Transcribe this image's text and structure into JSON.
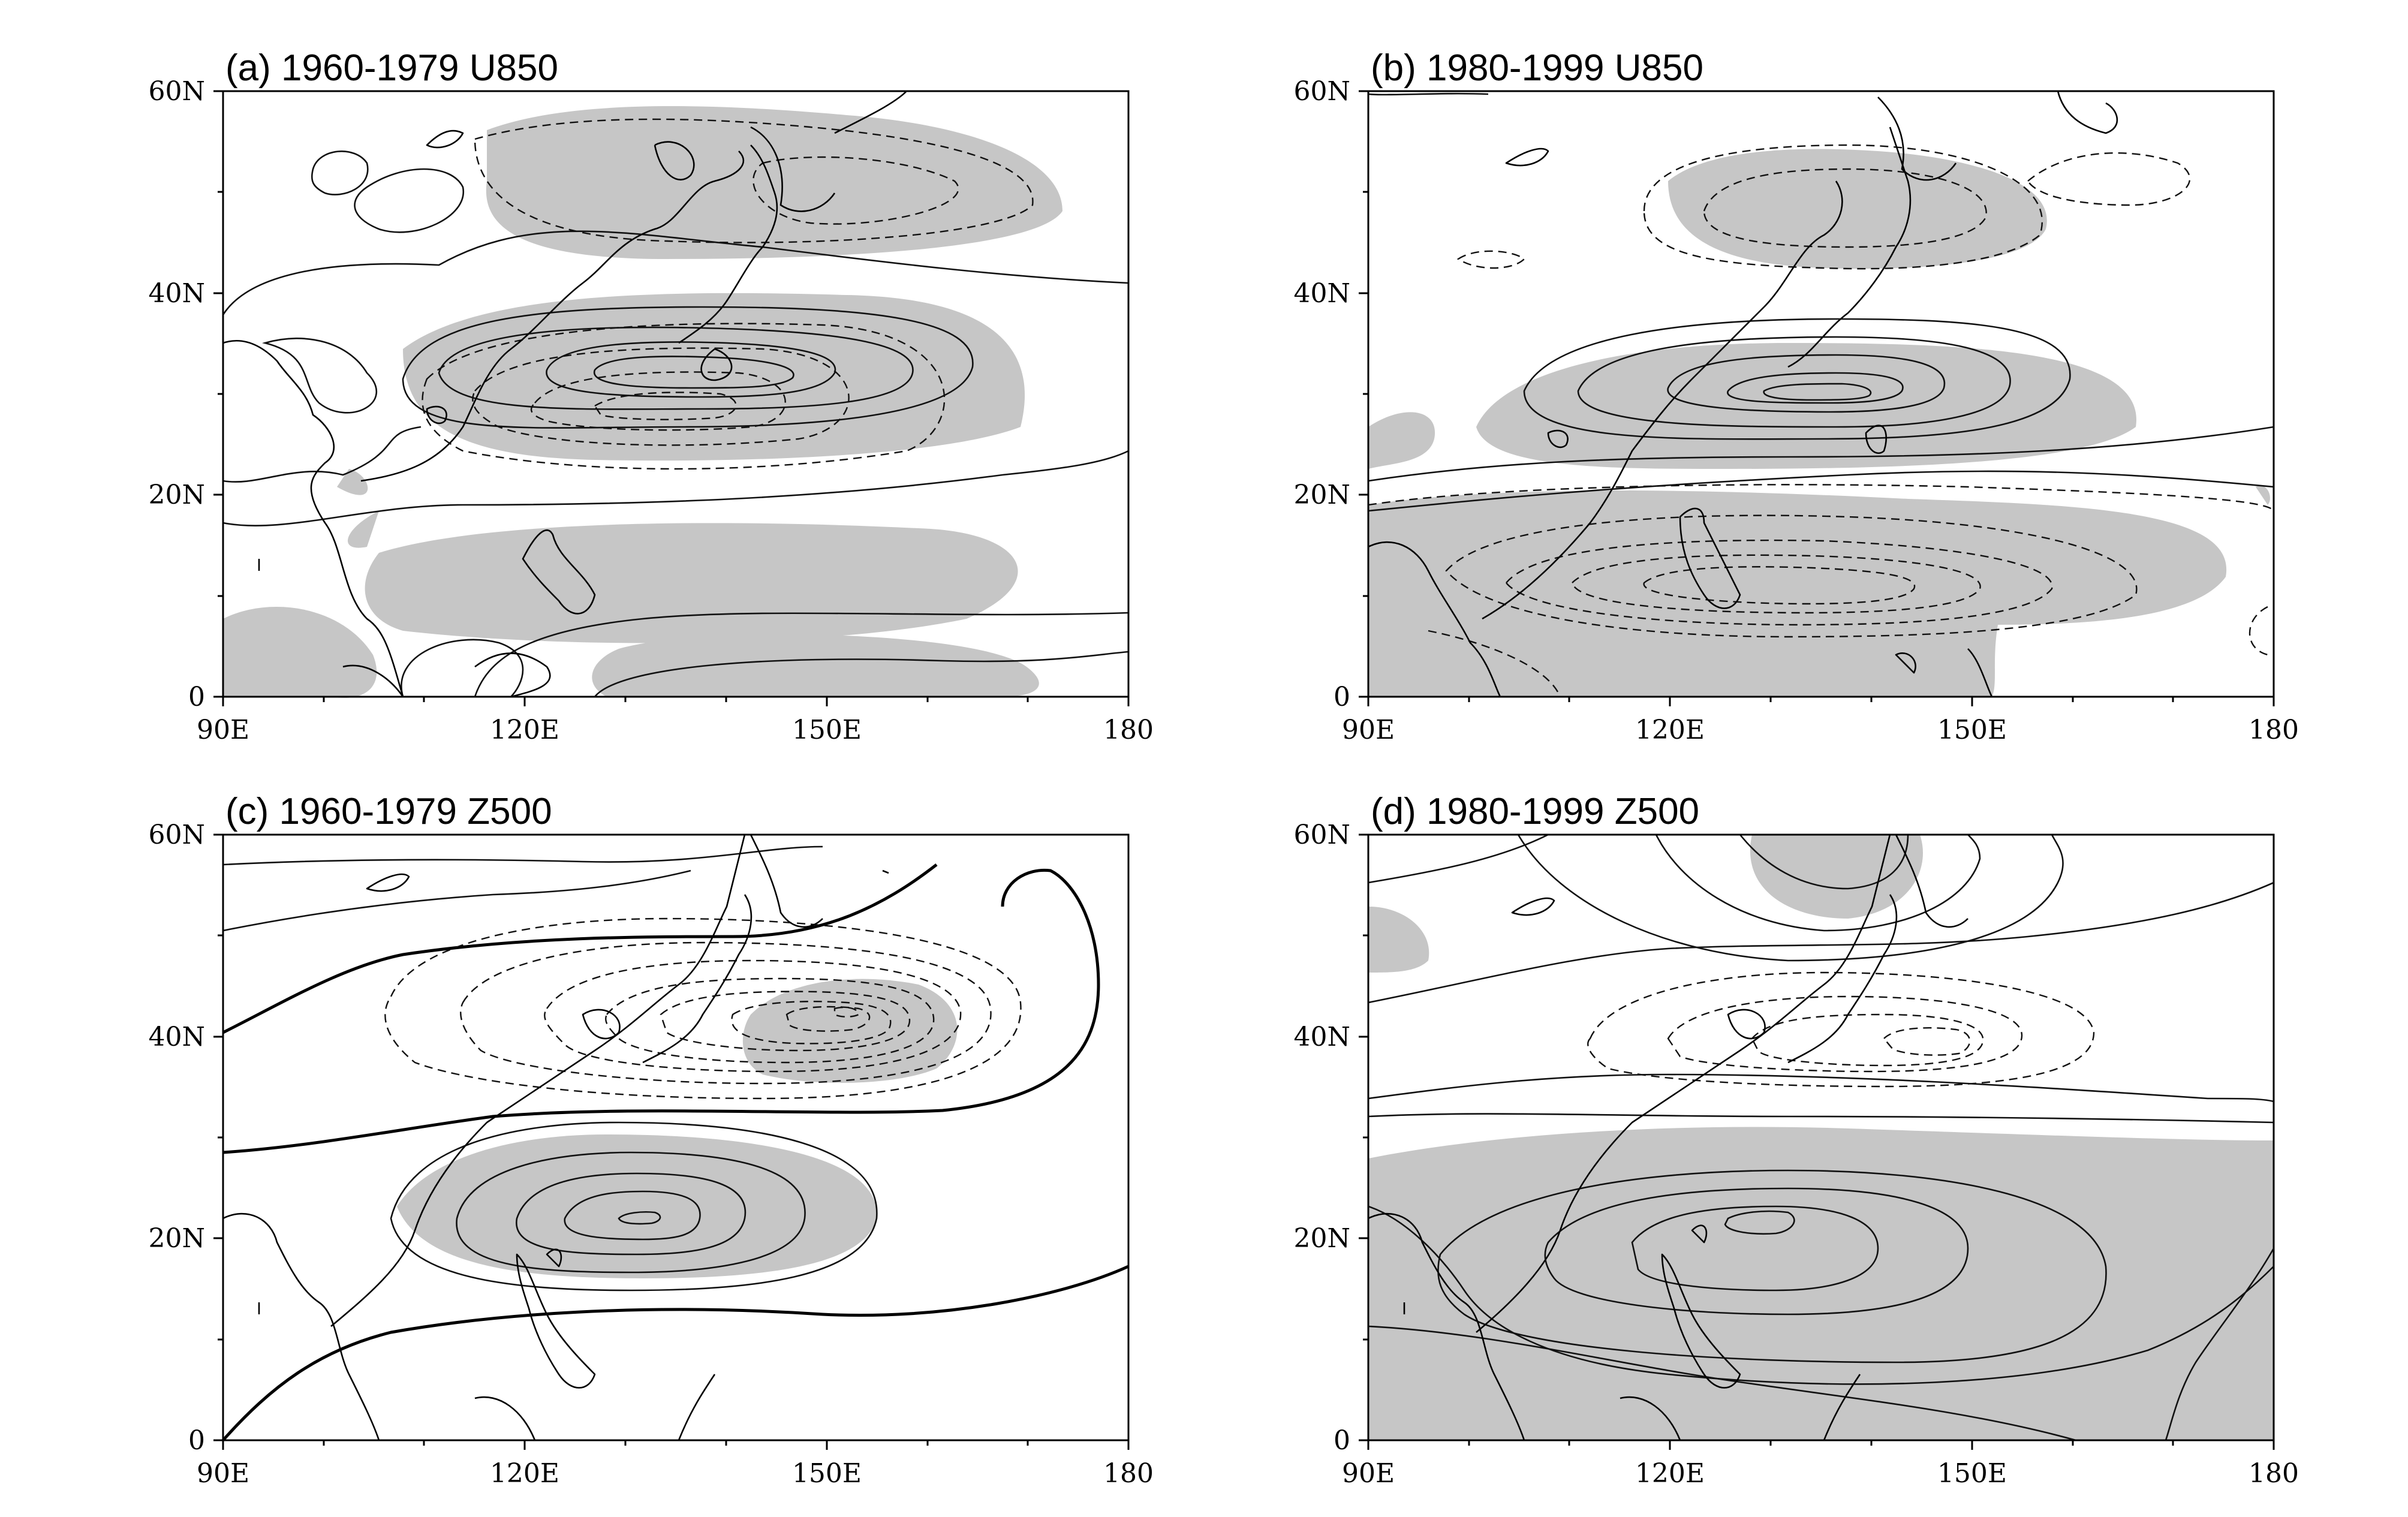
{
  "figure": {
    "panels": [
      {
        "id": "a",
        "title": "(a)  1960-1979 U850",
        "lat_labels": [
          "60N",
          "40N",
          "20N",
          "0"
        ],
        "lon_labels": [
          "90E",
          "120E",
          "150E",
          "180"
        ]
      },
      {
        "id": "b",
        "title": "(b)  1980-1999 U850",
        "lat_labels": [
          "60N",
          "40N",
          "20N",
          "0"
        ],
        "lon_labels": [
          "90E",
          "120E",
          "150E",
          "180"
        ]
      },
      {
        "id": "c",
        "title": "(c)  1960-1979 Z500",
        "lat_labels": [
          "60N",
          "40N",
          "20N",
          "0"
        ],
        "lon_labels": [
          "90E",
          "120E",
          "150E",
          "180"
        ]
      },
      {
        "id": "d",
        "title": "(d)  1980-1999 Z500",
        "lat_labels": [
          "60N",
          "40N",
          "20N",
          "0"
        ],
        "lon_labels": [
          "90E",
          "120E",
          "150E",
          "180"
        ]
      }
    ],
    "domain": {
      "lon_range": [
        90,
        180
      ],
      "lat_range": [
        0,
        60
      ]
    },
    "colors": {
      "shading": "#c6c6c6",
      "contour": "#111111",
      "frame": "#000000"
    }
  }
}
